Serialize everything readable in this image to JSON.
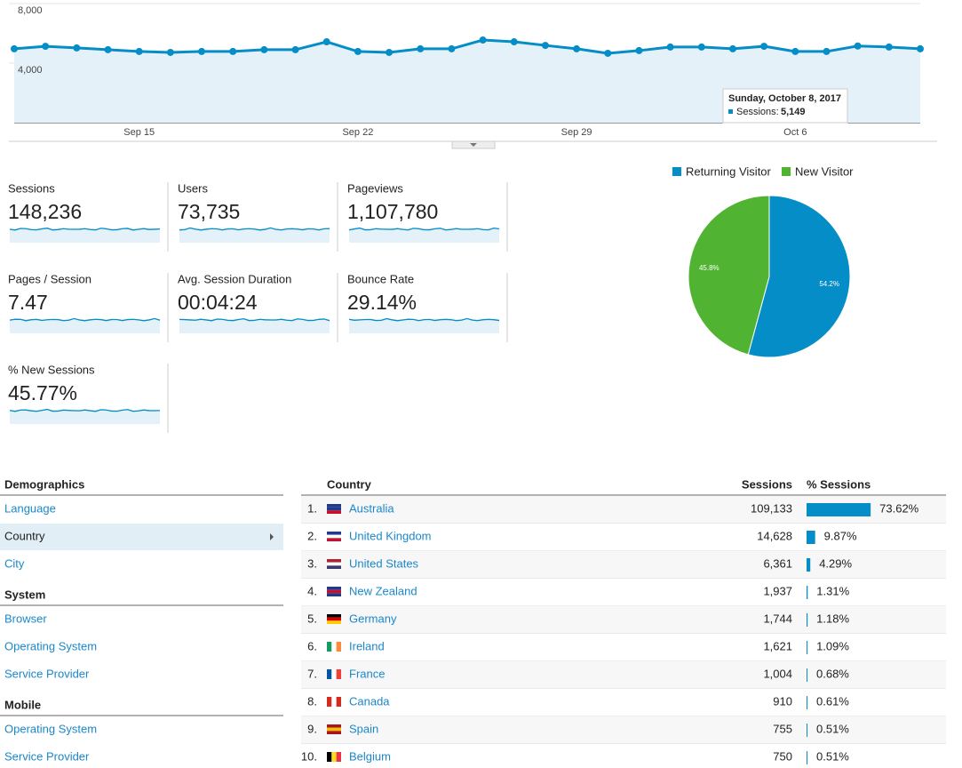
{
  "chart_data": [
    {
      "type": "line",
      "categories": [
        null,
        null,
        null,
        null,
        "Sep 15",
        null,
        null,
        null,
        null,
        null,
        null,
        "Sep 22",
        null,
        null,
        null,
        null,
        null,
        null,
        "Sep 29",
        null,
        null,
        null,
        null,
        null,
        null,
        "Oct 6",
        null,
        null,
        null,
        null
      ],
      "series": [
        {
          "name": "Sessions",
          "color": "#058dc7",
          "values": [
            4960,
            5130,
            5020,
            4900,
            4780,
            4720,
            4780,
            4780,
            4900,
            4900,
            5430,
            4780,
            4720,
            4960,
            4960,
            5550,
            5430,
            5190,
            4960,
            4660,
            4840,
            5080,
            5080,
            4960,
            5130,
            4780,
            4780,
            5149,
            5080,
            4960
          ]
        }
      ],
      "ylim": [
        0,
        8000
      ],
      "yticks": [
        {
          "value": 4000,
          "label": "4,000"
        },
        {
          "value": 8000,
          "label": "8,000"
        }
      ],
      "grid": true,
      "tooltip": {
        "title": "Sunday, October 8, 2017",
        "label": "Sessions:",
        "value_label": "5,149"
      }
    },
    {
      "type": "pie",
      "categories": [
        "Returning Visitor",
        "New Visitor"
      ],
      "values": [
        54.2,
        45.8
      ],
      "value_labels": [
        "54.2%",
        "45.8%"
      ],
      "colors": [
        "#058dc7",
        "#50b432"
      ],
      "legend": "top"
    }
  ],
  "metrics": [
    {
      "label": "Sessions",
      "value": "148,236"
    },
    {
      "label": "Users",
      "value": "73,735"
    },
    {
      "label": "Pageviews",
      "value": "1,107,780"
    },
    {
      "label": "Pages / Session",
      "value": "7.47"
    },
    {
      "label": "Avg. Session Duration",
      "value": "00:04:24"
    },
    {
      "label": "Bounce Rate",
      "value": "29.14%"
    },
    {
      "label": "% New Sessions",
      "value": "45.77%"
    }
  ],
  "nav": [
    {
      "heading": "Demographics",
      "items": [
        "Language",
        "Country",
        "City"
      ],
      "selected": 1
    },
    {
      "heading": "System",
      "items": [
        "Browser",
        "Operating System",
        "Service Provider"
      ]
    },
    {
      "heading": "Mobile",
      "items": [
        "Operating System",
        "Service Provider"
      ]
    }
  ],
  "table": {
    "headers": [
      "Country",
      "Sessions",
      "% Sessions"
    ],
    "rows": [
      {
        "rank": "1.",
        "country": "Australia",
        "sessions": "109,133",
        "percent": 73.62,
        "percent_label": "73.62%"
      },
      {
        "rank": "2.",
        "country": "United Kingdom",
        "sessions": "14,628",
        "percent": 9.87,
        "percent_label": "9.87%"
      },
      {
        "rank": "3.",
        "country": "United States",
        "sessions": "6,361",
        "percent": 4.29,
        "percent_label": "4.29%"
      },
      {
        "rank": "4.",
        "country": "New Zealand",
        "sessions": "1,937",
        "percent": 1.31,
        "percent_label": "1.31%"
      },
      {
        "rank": "5.",
        "country": "Germany",
        "sessions": "1,744",
        "percent": 1.18,
        "percent_label": "1.18%"
      },
      {
        "rank": "6.",
        "country": "Ireland",
        "sessions": "1,621",
        "percent": 1.09,
        "percent_label": "1.09%"
      },
      {
        "rank": "7.",
        "country": "France",
        "sessions": "1,004",
        "percent": 0.68,
        "percent_label": "0.68%"
      },
      {
        "rank": "8.",
        "country": "Canada",
        "sessions": "910",
        "percent": 0.61,
        "percent_label": "0.61%"
      },
      {
        "rank": "9.",
        "country": "Spain",
        "sessions": "755",
        "percent": 0.51,
        "percent_label": "0.51%"
      },
      {
        "rank": "10.",
        "country": "Belgium",
        "sessions": "750",
        "percent": 0.51,
        "percent_label": "0.51%"
      }
    ]
  }
}
